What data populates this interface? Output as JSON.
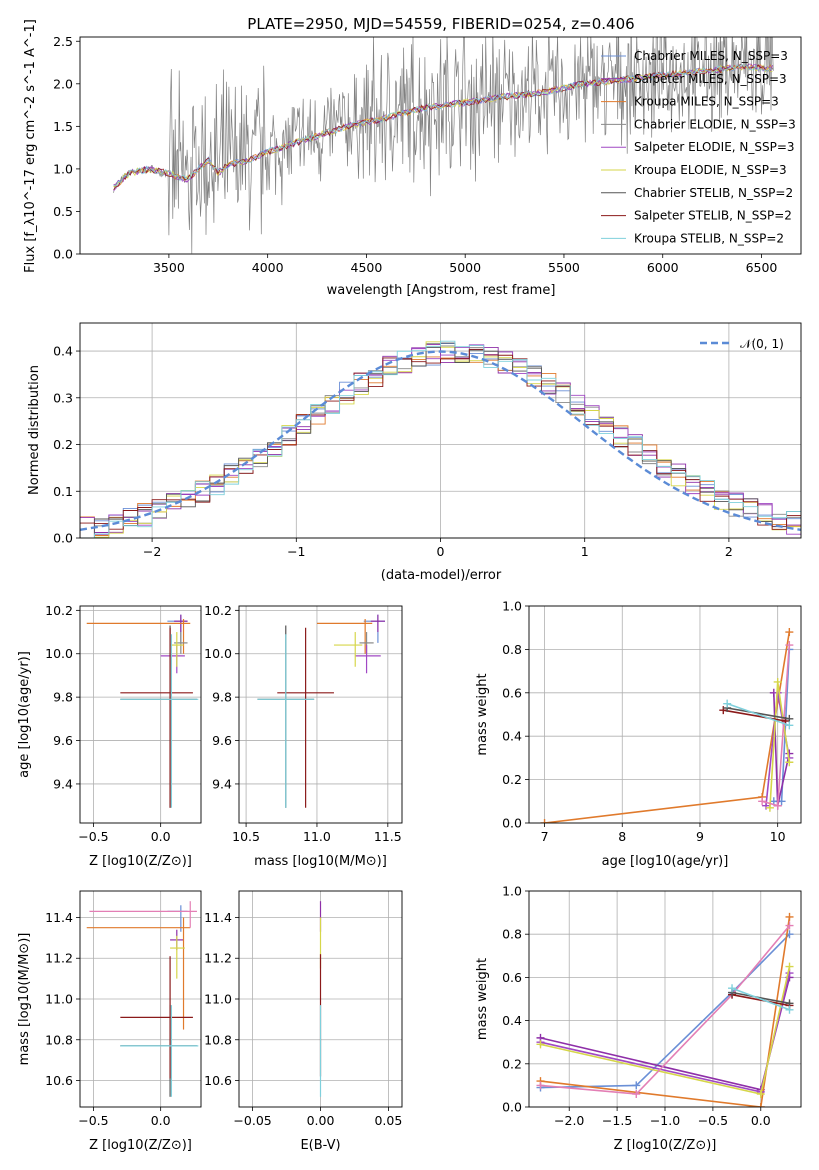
{
  "series_styles": [
    {
      "name": "Chabrier MILES, N_SSP=3",
      "color": "#6a8fd6"
    },
    {
      "name": "Salpeter MILES, N_SSP=3",
      "color": "#8e2fa8"
    },
    {
      "name": "Kroupa MILES, N_SSP=3",
      "color": "#e07a2c"
    },
    {
      "name": "Chabrier ELODIE, N_SSP=3",
      "color": "#8a8a8a"
    },
    {
      "name": "Salpeter ELODIE, N_SSP=3",
      "color": "#a048c4"
    },
    {
      "name": "Kroupa ELODIE, N_SSP=3",
      "color": "#d6d64a"
    },
    {
      "name": "Chabrier STELIB, N_SSP=2",
      "color": "#555555"
    },
    {
      "name": "Salpeter STELIB, N_SSP=2",
      "color": "#8b1a1a"
    },
    {
      "name": "Kroupa STELIB, N_SSP=2",
      "color": "#7fd0dc"
    }
  ],
  "chart_data": [
    {
      "id": "spectrum",
      "type": "line",
      "title": "PLATE=2950, MJD=54559, FIBERID=0254, z=0.406",
      "xlabel": "wavelength [Angstrom, rest frame]",
      "ylabel": "Flux [f_λ10^-17 erg cm^-2 s^-1 A^-1]",
      "xlim": [
        3050,
        6700
      ],
      "ylim": [
        0,
        2.55
      ],
      "xticks": [
        3500,
        4000,
        4500,
        5000,
        5500,
        6000,
        6500
      ],
      "yticks": [
        0.0,
        0.5,
        1.0,
        1.5,
        2.0,
        2.5
      ],
      "grid": false,
      "legend": {
        "placement": "right",
        "entries": [
          "Chabrier MILES, N_SSP=3",
          "Salpeter MILES, N_SSP=3",
          "Kroupa MILES, N_SSP=3",
          "Chabrier ELODIE, N_SSP=3",
          "Salpeter ELODIE, N_SSP=3",
          "Kroupa ELODIE, N_SSP=3",
          "Chabrier STELIB, N_SSP=2",
          "Salpeter STELIB, N_SSP=2",
          "Kroupa STELIB, N_SSP=2"
        ]
      },
      "continuum": {
        "x": [
          3220,
          3300,
          3400,
          3500,
          3550,
          3600,
          3650,
          3700,
          3750,
          3800,
          3900,
          4000,
          4200,
          4400,
          4600,
          4800,
          5000,
          5200,
          5400,
          5600,
          5800,
          6000,
          6200,
          6400,
          6550
        ],
        "y": [
          0.78,
          0.95,
          1.0,
          0.95,
          0.9,
          0.88,
          1.0,
          1.1,
          0.95,
          1.05,
          1.1,
          1.2,
          1.35,
          1.5,
          1.6,
          1.72,
          1.78,
          1.85,
          1.9,
          2.0,
          2.05,
          2.1,
          2.15,
          2.2,
          2.18
        ]
      }
    },
    {
      "id": "residuals",
      "type": "histogram",
      "xlabel": "(data-model)/error",
      "ylabel": "Normed distribution",
      "xlim": [
        -2.5,
        2.5
      ],
      "ylim": [
        0,
        0.46
      ],
      "xticks": [
        -2,
        -1,
        0,
        1,
        2
      ],
      "yticks": [
        0.0,
        0.1,
        0.2,
        0.3,
        0.4
      ],
      "grid": true,
      "legend": {
        "placement": "top-right",
        "entries": [
          "N(0,1)"
        ]
      },
      "reference": {
        "name": "N(0,1)",
        "mean": 0,
        "sd": 1,
        "style": "dashed",
        "color": "#5b8bd6"
      }
    },
    {
      "id": "age_vs_Z",
      "type": "errorbar",
      "xlabel": "Z [log10(Z/Z⊙)]",
      "ylabel": "age  [log10(age/yr)]",
      "xlim": [
        -0.6,
        0.3
      ],
      "ylim": [
        9.22,
        10.22
      ],
      "xticks": [
        -0.5,
        0.0
      ],
      "yticks": [
        9.4,
        9.6,
        9.8,
        10.0,
        10.2
      ],
      "grid": true,
      "points": [
        {
          "x": 0.15,
          "y": 10.15,
          "xerr": [
            0.1,
            0.05
          ],
          "yerr": [
            0.1,
            0.03
          ],
          "c": "#6a8fd6"
        },
        {
          "x": 0.15,
          "y": 10.15,
          "xerr": [
            0.05,
            0.05
          ],
          "yerr": [
            0.05,
            0.03
          ],
          "c": "#8e2fa8"
        },
        {
          "x": 0.17,
          "y": 10.14,
          "xerr": [
            0.72,
            0.05
          ],
          "yerr": [
            0.14,
            0.02
          ],
          "c": "#e07a2c"
        },
        {
          "x": 0.15,
          "y": 10.05,
          "xerr": [
            0.05,
            0.05
          ],
          "yerr": [
            0.05,
            0.05
          ],
          "c": "#8a8a8a"
        },
        {
          "x": 0.12,
          "y": 9.99,
          "xerr": [
            0.12,
            0.06
          ],
          "yerr": [
            0.08,
            0.05
          ],
          "c": "#a048c4"
        },
        {
          "x": 0.12,
          "y": 10.04,
          "xerr": [
            0.05,
            0.05
          ],
          "yerr": [
            0.1,
            0.06
          ],
          "c": "#d6d64a"
        },
        {
          "x": 0.07,
          "y": 9.79,
          "xerr": [
            0.37,
            0.2
          ],
          "yerr": [
            0.5,
            0.34
          ],
          "c": "#555555"
        },
        {
          "x": 0.07,
          "y": 9.82,
          "xerr": [
            0.37,
            0.17
          ],
          "yerr": [
            0.53,
            0.3
          ],
          "c": "#8b1a1a"
        },
        {
          "x": 0.08,
          "y": 9.79,
          "xerr": [
            0.38,
            0.2
          ],
          "yerr": [
            0.5,
            0.3
          ],
          "c": "#7fd0dc"
        }
      ]
    },
    {
      "id": "age_vs_mass",
      "type": "errorbar",
      "xlabel": "mass [log10(M/M⊙)]",
      "ylabel": "",
      "xlim": [
        10.45,
        11.6
      ],
      "ylim": [
        9.22,
        10.22
      ],
      "xticks": [
        10.5,
        11.0,
        11.5
      ],
      "yticks": [
        9.4,
        9.6,
        9.8,
        10.0,
        10.2
      ],
      "grid": true,
      "points": [
        {
          "x": 11.43,
          "y": 10.15,
          "xerr": [
            0.1,
            0.05
          ],
          "yerr": [
            0.1,
            0.03
          ],
          "c": "#6a8fd6"
        },
        {
          "x": 11.43,
          "y": 10.15,
          "xerr": [
            0.05,
            0.05
          ],
          "yerr": [
            0.05,
            0.03
          ],
          "c": "#8e2fa8"
        },
        {
          "x": 11.34,
          "y": 10.14,
          "xerr": [
            0.34,
            0.05
          ],
          "yerr": [
            0.14,
            0.02
          ],
          "c": "#e07a2c"
        },
        {
          "x": 11.35,
          "y": 10.05,
          "xerr": [
            0.05,
            0.05
          ],
          "yerr": [
            0.05,
            0.05
          ],
          "c": "#8a8a8a"
        },
        {
          "x": 11.35,
          "y": 9.99,
          "xerr": [
            0.08,
            0.1
          ],
          "yerr": [
            0.08,
            0.05
          ],
          "c": "#a048c4"
        },
        {
          "x": 11.27,
          "y": 10.04,
          "xerr": [
            0.15,
            0.05
          ],
          "yerr": [
            0.1,
            0.06
          ],
          "c": "#d6d64a"
        },
        {
          "x": 10.78,
          "y": 9.79,
          "xerr": [
            0.2,
            0.2
          ],
          "yerr": [
            0.5,
            0.34
          ],
          "c": "#555555"
        },
        {
          "x": 10.92,
          "y": 9.82,
          "xerr": [
            0.2,
            0.2
          ],
          "yerr": [
            0.53,
            0.3
          ],
          "c": "#8b1a1a"
        },
        {
          "x": 10.78,
          "y": 9.79,
          "xerr": [
            0.2,
            0.2
          ],
          "yerr": [
            0.5,
            0.3
          ],
          "c": "#7fd0dc"
        }
      ]
    },
    {
      "id": "weight_vs_age",
      "type": "line",
      "xlabel": "age  [log10(age/yr)]",
      "ylabel": "mass weight",
      "xlim": [
        6.8,
        10.3
      ],
      "ylim": [
        0,
        1
      ],
      "xticks": [
        7,
        8,
        9,
        10
      ],
      "yticks": [
        0.0,
        0.2,
        0.4,
        0.6,
        0.8,
        1.0
      ],
      "grid": true,
      "series": [
        {
          "c": "#6a8fd6",
          "x": [
            9.95,
            10.05,
            10.15
          ],
          "y": [
            0.1,
            0.1,
            0.8
          ]
        },
        {
          "c": "#8e2fa8",
          "x": [
            9.95,
            10.0,
            10.15
          ],
          "y": [
            0.6,
            0.08,
            0.32
          ]
        },
        {
          "c": "#e07a2c",
          "x": [
            7.0,
            9.8,
            10.15
          ],
          "y": [
            0.0,
            0.12,
            0.88
          ]
        },
        {
          "c": "#a048c4",
          "x": [
            9.85,
            10.0,
            10.15
          ],
          "y": [
            0.08,
            0.6,
            0.3
          ]
        },
        {
          "c": "#d6d64a",
          "x": [
            9.9,
            10.0,
            10.15
          ],
          "y": [
            0.07,
            0.65,
            0.28
          ]
        },
        {
          "c": "#e37fb5",
          "x": [
            9.8,
            10.0,
            10.15
          ],
          "y": [
            0.1,
            0.08,
            0.82
          ]
        },
        {
          "c": "#8b1a1a",
          "x": [
            9.3,
            10.1
          ],
          "y": [
            0.52,
            0.47
          ]
        },
        {
          "c": "#555555",
          "x": [
            9.35,
            10.15
          ],
          "y": [
            0.53,
            0.48
          ]
        },
        {
          "c": "#7fd0dc",
          "x": [
            9.35,
            10.15
          ],
          "y": [
            0.55,
            0.45
          ]
        }
      ]
    },
    {
      "id": "mass_vs_Z",
      "type": "errorbar",
      "xlabel": "Z [log10(Z/Z⊙)]",
      "ylabel": "mass [log10(M/M⊙)]",
      "xlim": [
        -0.6,
        0.3
      ],
      "ylim": [
        10.47,
        11.53
      ],
      "xticks": [
        -0.5,
        0.0
      ],
      "yticks": [
        10.6,
        10.8,
        11.0,
        11.2,
        11.4
      ],
      "grid": true,
      "points": [
        {
          "x": 0.15,
          "y": 11.43,
          "xerr": [
            0.1,
            0.05
          ],
          "yerr": [
            0.1,
            0.03
          ],
          "c": "#6a8fd6"
        },
        {
          "x": 0.12,
          "y": 11.29,
          "xerr": [
            0.05,
            0.05
          ],
          "yerr": [
            0.05,
            0.05
          ],
          "c": "#8e2fa8"
        },
        {
          "x": 0.17,
          "y": 11.35,
          "xerr": [
            0.72,
            0.05
          ],
          "yerr": [
            0.5,
            0.05
          ],
          "c": "#e07a2c"
        },
        {
          "x": 0.22,
          "y": 11.43,
          "xerr": [
            0.75,
            0.05
          ],
          "yerr": [
            0.08,
            0.05
          ],
          "c": "#e37fb5"
        },
        {
          "x": 0.12,
          "y": 11.25,
          "xerr": [
            0.05,
            0.06
          ],
          "yerr": [
            0.15,
            0.06
          ],
          "c": "#d6d64a"
        },
        {
          "x": 0.07,
          "y": 10.77,
          "xerr": [
            0.37,
            0.2
          ],
          "yerr": [
            0.25,
            0.2
          ],
          "c": "#555555"
        },
        {
          "x": 0.07,
          "y": 10.91,
          "xerr": [
            0.37,
            0.17
          ],
          "yerr": [
            0.3,
            0.3
          ],
          "c": "#8b1a1a"
        },
        {
          "x": 0.08,
          "y": 10.77,
          "xerr": [
            0.38,
            0.2
          ],
          "yerr": [
            0.25,
            0.2
          ],
          "c": "#7fd0dc"
        }
      ]
    },
    {
      "id": "mass_vs_EBV",
      "type": "errorbar",
      "xlabel": "E(B-V)",
      "ylabel": "",
      "xlim": [
        -0.06,
        0.06
      ],
      "ylim": [
        10.47,
        11.53
      ],
      "xticks": [
        -0.05,
        0.0,
        0.05
      ],
      "yticks": [
        10.6,
        10.8,
        11.0,
        11.2,
        11.4
      ],
      "grid": true,
      "points": [
        {
          "x": 0.0,
          "y": 11.43,
          "xerr": [
            0,
            0
          ],
          "yerr": [
            0.1,
            0.05
          ],
          "c": "#8e2fa8"
        },
        {
          "x": 0.0,
          "y": 11.3,
          "xerr": [
            0,
            0
          ],
          "yerr": [
            0.15,
            0.1
          ],
          "c": "#d6d64a"
        },
        {
          "x": 0.0,
          "y": 10.92,
          "xerr": [
            0,
            0
          ],
          "yerr": [
            0.3,
            0.3
          ],
          "c": "#8b1a1a"
        },
        {
          "x": 0.0,
          "y": 10.77,
          "xerr": [
            0,
            0
          ],
          "yerr": [
            0.25,
            0.2
          ],
          "c": "#7fd0dc"
        }
      ]
    },
    {
      "id": "weight_vs_Z",
      "type": "line",
      "xlabel": "Z [log10(Z/Z⊙)]",
      "ylabel": "mass weight",
      "xlim": [
        -2.42,
        0.42
      ],
      "ylim": [
        0,
        1
      ],
      "xticks": [
        -2.0,
        -1.5,
        -1.0,
        -0.5,
        0.0
      ],
      "yticks": [
        0.0,
        0.2,
        0.4,
        0.6,
        0.8,
        1.0
      ],
      "grid": true,
      "series": [
        {
          "c": "#6a8fd6",
          "x": [
            -2.3,
            -1.3,
            -0.3,
            0.3
          ],
          "y": [
            0.09,
            0.1,
            0.53,
            0.8
          ]
        },
        {
          "c": "#8e2fa8",
          "x": [
            -2.3,
            0.0,
            0.3
          ],
          "y": [
            0.32,
            0.08,
            0.6
          ]
        },
        {
          "c": "#e07a2c",
          "x": [
            -2.3,
            0.0,
            0.3
          ],
          "y": [
            0.12,
            0.0,
            0.88
          ]
        },
        {
          "c": "#a048c4",
          "x": [
            -2.3,
            0.0,
            0.3
          ],
          "y": [
            0.3,
            0.07,
            0.62
          ]
        },
        {
          "c": "#d6d64a",
          "x": [
            -2.3,
            0.0,
            0.3
          ],
          "y": [
            0.29,
            0.06,
            0.65
          ]
        },
        {
          "c": "#e37fb5",
          "x": [
            -2.3,
            -1.3,
            -0.3,
            0.3
          ],
          "y": [
            0.1,
            0.06,
            0.52,
            0.84
          ]
        },
        {
          "c": "#8b1a1a",
          "x": [
            -0.3,
            0.3
          ],
          "y": [
            0.52,
            0.47
          ]
        },
        {
          "c": "#555555",
          "x": [
            -0.3,
            0.3
          ],
          "y": [
            0.53,
            0.48
          ]
        },
        {
          "c": "#7fd0dc",
          "x": [
            -0.3,
            0.3
          ],
          "y": [
            0.55,
            0.45
          ]
        }
      ]
    }
  ]
}
